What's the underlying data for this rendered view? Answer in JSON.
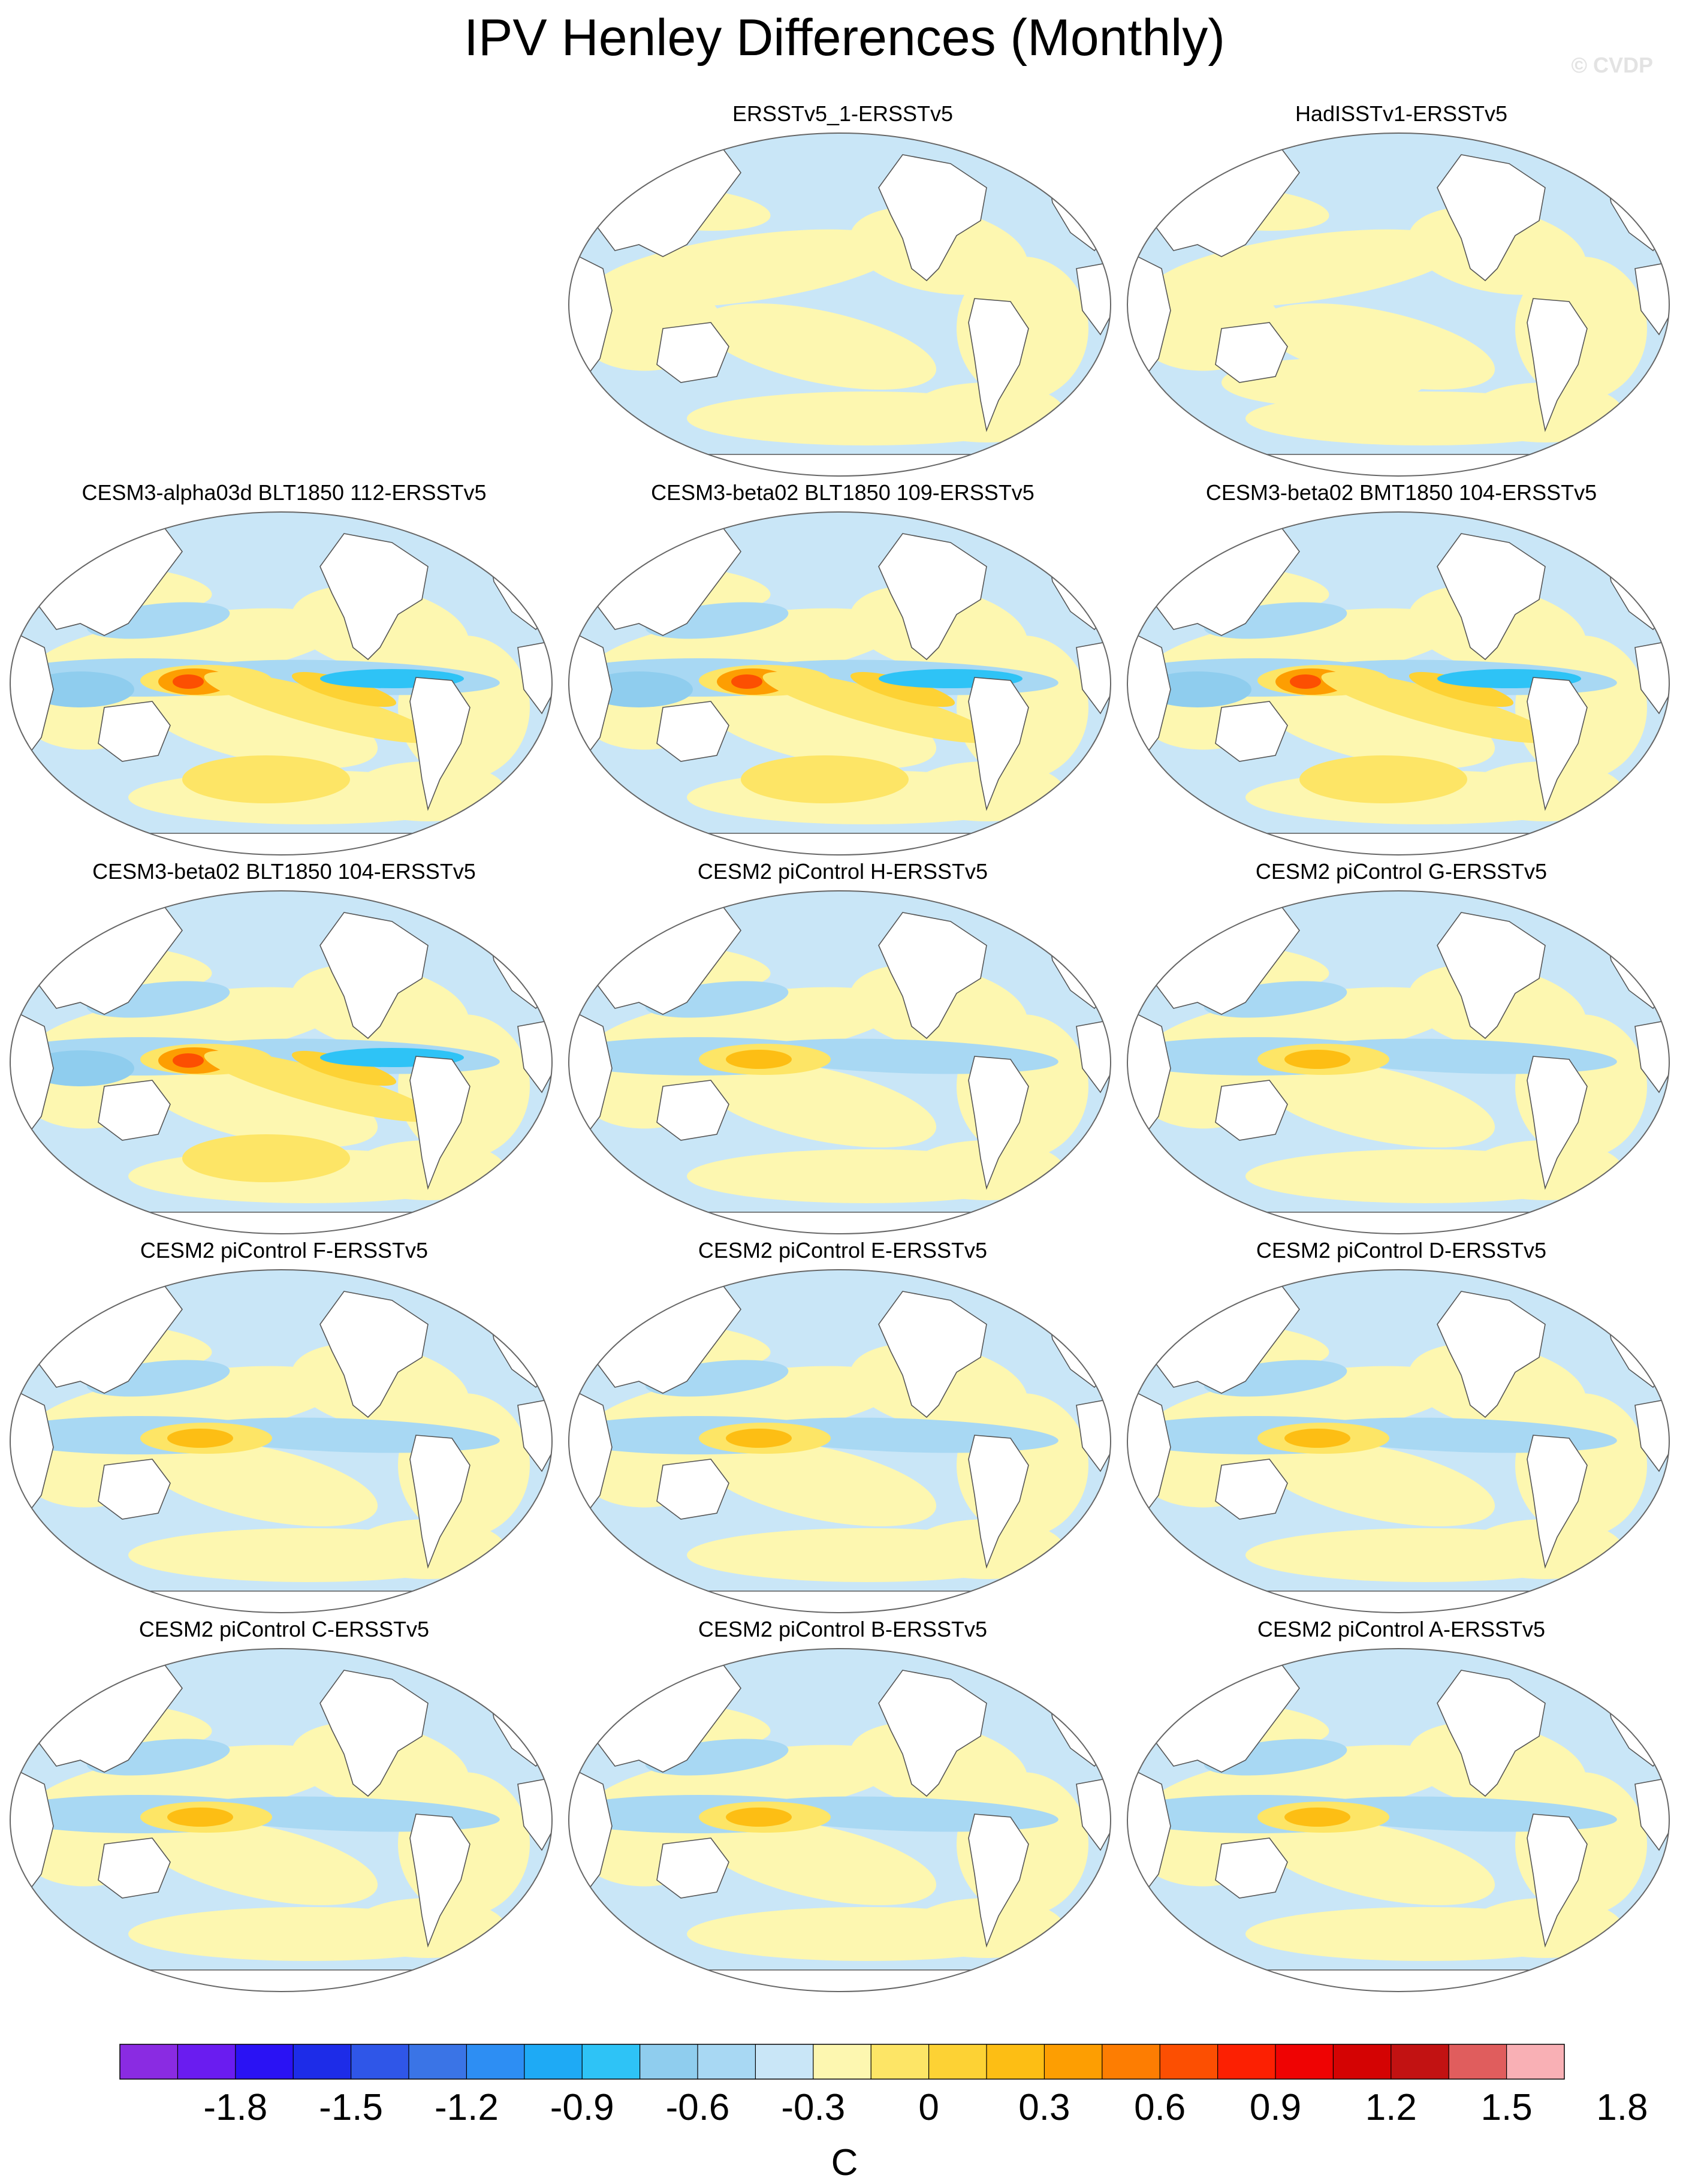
{
  "title": "IPV Henley Differences (Monthly)",
  "watermark": "© CVDP",
  "panels": [
    {
      "title": "ERSSTv5_1-ERSSTv5",
      "col": 1,
      "row": 0,
      "pattern": "obs_a"
    },
    {
      "title": "HadISSTv1-ERSSTv5",
      "col": 2,
      "row": 0,
      "pattern": "obs_b"
    },
    {
      "title": "CESM3-alpha03d BLT1850 112-ERSSTv5",
      "col": 0,
      "row": 1,
      "pattern": "strong"
    },
    {
      "title": "CESM3-beta02 BLT1850 109-ERSSTv5",
      "col": 1,
      "row": 1,
      "pattern": "strong"
    },
    {
      "title": "CESM3-beta02 BMT1850 104-ERSSTv5",
      "col": 2,
      "row": 1,
      "pattern": "strong"
    },
    {
      "title": "CESM3-beta02 BLT1850 104-ERSSTv5",
      "col": 0,
      "row": 2,
      "pattern": "strong"
    },
    {
      "title": "CESM2 piControl H-ERSSTv5",
      "col": 1,
      "row": 2,
      "pattern": "moderate"
    },
    {
      "title": "CESM2 piControl G-ERSSTv5",
      "col": 2,
      "row": 2,
      "pattern": "moderate"
    },
    {
      "title": "CESM2 piControl F-ERSSTv5",
      "col": 0,
      "row": 3,
      "pattern": "moderate"
    },
    {
      "title": "CESM2 piControl E-ERSSTv5",
      "col": 1,
      "row": 3,
      "pattern": "moderate"
    },
    {
      "title": "CESM2 piControl D-ERSSTv5",
      "col": 2,
      "row": 3,
      "pattern": "moderate"
    },
    {
      "title": "CESM2 piControl C-ERSSTv5",
      "col": 0,
      "row": 4,
      "pattern": "moderate"
    },
    {
      "title": "CESM2 piControl B-ERSSTv5",
      "col": 1,
      "row": 4,
      "pattern": "moderate"
    },
    {
      "title": "CESM2 piControl A-ERSSTv5",
      "col": 2,
      "row": 4,
      "pattern": "moderate"
    }
  ],
  "colorbar": {
    "unit": "C",
    "tick_labels": [
      "-1.8",
      "-1.5",
      "-1.2",
      "-0.9",
      "-0.6",
      "-0.3",
      "0",
      "0.3",
      "0.6",
      "0.9",
      "1.2",
      "1.5",
      "1.8"
    ],
    "colors": [
      "#8a2be2",
      "#6a1cf0",
      "#2a12f4",
      "#1d2ce8",
      "#2f56e8",
      "#3a74e6",
      "#2d8ef3",
      "#1eaaf5",
      "#2ec3f6",
      "#8fcdee",
      "#a8d8f3",
      "#c9e6f7",
      "#fdf7b0",
      "#fde566",
      "#fdd234",
      "#fdbe14",
      "#fd9e02",
      "#fd7d02",
      "#fc4f02",
      "#fc2002",
      "#ef0303",
      "#d40303",
      "#c21212",
      "#e05d5d",
      "#f9b0b5"
    ]
  }
}
